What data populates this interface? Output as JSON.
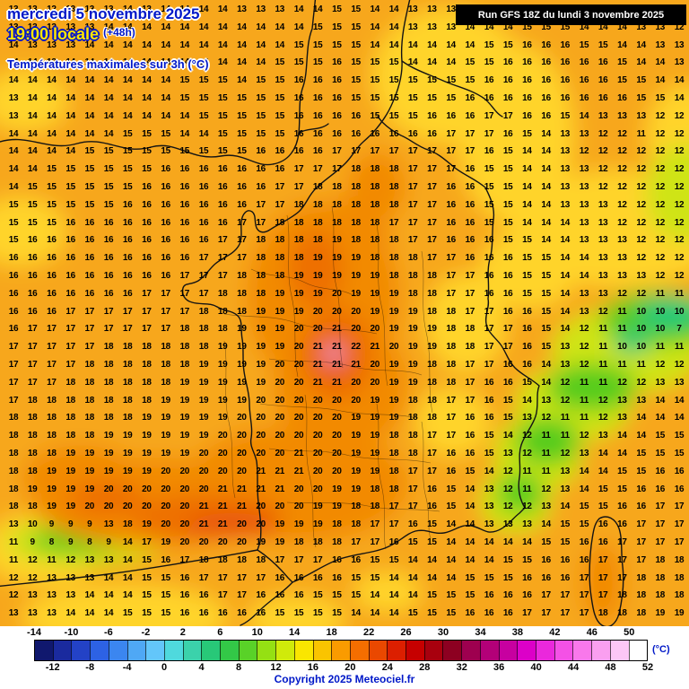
{
  "header": {
    "date_line": "mercredi 5 novembre 2025",
    "time_main": "19:00 locale",
    "time_offset": "(+48h)",
    "subtitle": "Températures maximales sur 3h (°C)",
    "run_info": "Run GFS 18Z du lundi 3 novembre 2025"
  },
  "footer": {
    "copyright": "Copyright 2025 Meteociel.fr",
    "unit_label": "(°C)"
  },
  "colorbar": {
    "min": -14,
    "max": 52,
    "step": 2,
    "top_labels": [
      "-14",
      "-10",
      "-6",
      "-2",
      "2",
      "6",
      "10",
      "14",
      "18",
      "22",
      "26",
      "30",
      "34",
      "38",
      "42",
      "46",
      "50"
    ],
    "bottom_labels": [
      "-12",
      "-8",
      "-4",
      "0",
      "4",
      "8",
      "12",
      "16",
      "20",
      "24",
      "28",
      "32",
      "36",
      "40",
      "44",
      "48",
      "52"
    ],
    "segment_colors": [
      "#10186e",
      "#1a2a9e",
      "#2342c6",
      "#2d62e4",
      "#3b86f0",
      "#4fa8f5",
      "#63c6fa",
      "#4fd9dd",
      "#3bd2ab",
      "#28c878",
      "#33c847",
      "#59d228",
      "#95e013",
      "#d0ea0a",
      "#fae600",
      "#fac400",
      "#fa9b00",
      "#f56e00",
      "#ea4800",
      "#dc1f00",
      "#c60000",
      "#a8000e",
      "#8d0021",
      "#9e004f",
      "#b30078",
      "#c700a0",
      "#dc00c8",
      "#ea28dc",
      "#f451e6",
      "#f978eb",
      "#fa9ff0",
      "#fcc7f6",
      "#ffffff"
    ]
  },
  "map_palette": {
    "base": "#f7a71c",
    "yellow": "#ffd42c",
    "yellowgreen": "#cfe412",
    "green": "#54cc1c",
    "teal": "#12c97d",
    "orange2": "#f28a00",
    "orange3": "#ee6f00",
    "red": "#e8530e",
    "pink": "#f4a8c8"
  },
  "map_grid": {
    "unit": "°C",
    "rows": [
      "13 13 12 13 13 13 14 13 14 14 14 14 13 13 13 14 14 15 15 14 14 13 13 13 13 13 14 14 14 14 14 14 13 13 12 12",
      "13 13 13 13 13 14 14 14 14 14 14 14 14 14 14 14 15 15 15 14 14 13 13 13 14 14 14 15 15 15 14 14 14 13 13 12",
      "14 13 13 13 14 14 14 14 14 14 14 14 14 14 14 15 15 15 15 14 14 14 14 14 14 15 15 16 16 16 15 15 14 14 13 13",
      "14 14 13 14 14 14 14 14 14 14 14 14 14 14 15 15 15 16 15 15 15 14 14 14 15 15 16 16 16 16 16 16 15 14 14 13",
      "14 14 14 14 14 14 14 14 14 15 15 15 14 15 15 16 16 16 15 15 15 15 15 15 15 16 16 16 16 16 16 16 15 15 14 14",
      "13 14 14 14 14 14 14 14 14 15 15 15 15 15 15 16 16 16 15 15 15 15 15 15 16 16 16 16 16 16 16 16 16 15 15 14",
      "13 14 14 14 14 14 14 14 14 14 15 15 15 15 15 16 16 16 16 15 15 15 16 16 16 17 17 16 16 15 14 13 13 13 12 12",
      "14 14 14 14 14 14 15 15 15 14 14 15 15 15 15 16 16 16 16 16 16 16 16 17 17 17 16 15 14 13 13 12 12 11 12 12",
      "14 14 14 14 15 15 15 15 15 15 15 15 15 16 16 16 16 17 17 17 17 17 17 17 17 16 15 14 14 13 12 12 12 12 12 12",
      "14 14 15 15 15 15 15 15 16 16 16 16 16 16 16 17 17 17 18 18 18 17 17 17 16 15 15 14 14 13 13 12 12 12 12 12",
      "14 15 15 15 15 15 15 16 16 16 16 16 16 16 17 17 18 18 18 18 18 17 17 16 16 15 15 14 14 13 13 12 12 12 12 12",
      "15 15 15 15 15 15 16 16 16 16 16 16 16 17 17 18 18 18 18 18 18 17 17 16 16 15 15 14 14 13 13 13 12 12 12 12",
      "15 15 15 16 16 16 16 16 16 16 16 16 17 17 18 18 18 18 18 18 17 17 17 16 16 15 15 14 14 14 13 13 12 12 12 12",
      "15 16 16 16 16 16 16 16 16 16 16 17 17 18 18 18 18 19 18 18 18 17 17 16 16 16 15 15 14 14 13 13 13 12 12 12",
      "16 16 16 16 16 16 16 16 16 16 17 17 17 18 18 18 19 19 19 18 18 18 17 17 16 16 16 15 15 14 14 13 13 12 12 12",
      "16 16 16 16 16 16 16 16 16 17 17 17 18 18 18 19 19 19 19 19 18 18 18 17 17 16 16 15 15 14 14 13 13 13 12 12",
      "16 16 16 16 16 16 16 17 17 17 17 18 18 18 19 19 19 20 19 19 19 18 18 17 17 16 16 15 15 14 13 13 12 12 11 11",
      "16 16 16 17 17 17 17 17 17 17 18 18 18 19 19 19 20 20 20 19 19 19 18 18 17 17 16 16 15 14 13 12 11 10 10 10",
      "16 17 17 17 17 17 17 17 17 18 18 18 19 19 19 20 20 21 20 20 19 19 19 18 18 17 17 16 15 14 12 11 11 10 10 7",
      "17 17 17 17 17 18 18 18 18 18 18 19 19 19 19 20 21 21 22 21 20 19 19 18 18 17 17 16 15 13 12 11 10 10 11 11",
      "17 17 17 17 18 18 18 18 18 18 19 19 19 19 20 20 21 21 21 20 19 19 18 18 17 17 16 16 14 13 12 11 11 11 12 12",
      "17 17 17 18 18 18 18 18 18 19 19 19 19 19 20 20 21 21 20 20 19 19 18 18 17 16 16 15 14 12 11 11 12 12 13 13",
      "17 18 18 18 18 18 18 18 19 19 19 19 19 20 20 20 20 20 20 19 19 18 18 17 17 16 15 14 13 12 11 12 13 13 14 14",
      "18 18 18 18 18 18 18 19 19 19 19 19 20 20 20 20 20 20 19 19 19 18 18 17 16 16 15 13 12 11 11 12 13 14 14 14",
      "18 18 18 18 18 19 19 19 19 19 19 20 20 20 20 20 20 20 19 19 18 18 17 17 16 15 14 12 11 11 12 13 14 14 15 15",
      "18 18 18 19 19 19 19 19 19 19 20 20 20 20 20 21 20 20 19 19 18 18 17 16 16 15 13 12 11 12 13 14 14 15 15 15",
      "18 18 19 19 19 19 19 19 20 20 20 20 20 21 21 21 20 20 19 19 18 17 17 16 15 14 12 11 11 13 14 14 15 15 16 16",
      "18 19 19 19 19 20 20 20 20 20 20 21 21 21 21 20 20 19 19 18 18 17 16 15 14 13 12 11 12 13 14 15 15 16 16 16",
      "18 18 19 19 20 20 20 20 20 20 21 21 21 20 20 20 19 19 18 18 17 17 16 15 14 13 12 12 13 14 15 15 16 16 17 17",
      "13 10 9 9 9 13 18 19 20 20 21 21 20 20 19 19 19 18 18 17 17 16 15 14 14 13 13 13 14 15 15 16 16 17 17 17",
      "11 9 8 9 8 9 14 17 19 20 20 20 20 19 19 18 18 18 17 17 16 15 15 14 14 14 14 14 15 15 16 16 17 17 17 17",
      "11 12 11 12 13 13 14 15 16 17 18 18 18 18 17 17 17 16 16 15 15 14 14 14 14 14 15 15 16 16 16 17 17 17 18 18",
      "12 12 13 13 13 14 14 15 15 16 17 17 17 17 16 16 16 16 15 15 14 14 14 14 15 15 15 16 16 16 17 17 17 18 18 18",
      "12 13 13 13 14 14 14 15 15 16 16 17 17 16 16 16 15 15 15 14 14 14 15 15 15 16 16 16 17 17 17 17 18 18 18 18",
      "13 13 13 14 14 14 15 15 15 16 16 16 16 16 15 15 15 15 14 14 14 15 15 15 16 16 16 17 17 17 17 18 18 18 19 19"
    ]
  }
}
